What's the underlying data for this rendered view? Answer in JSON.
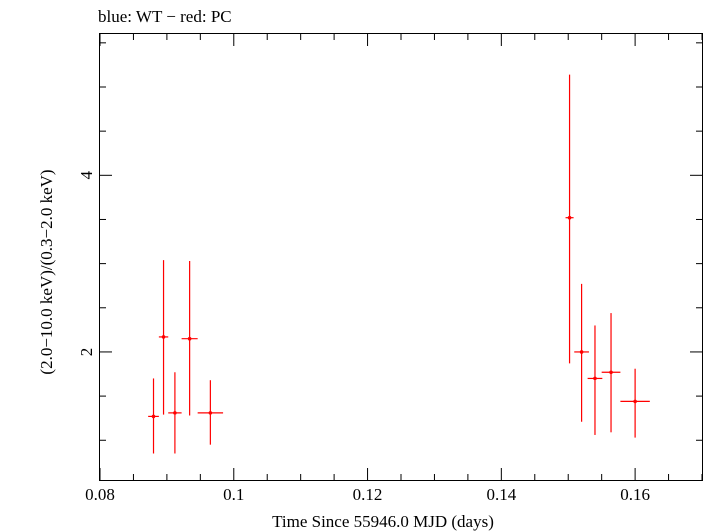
{
  "chart_data": {
    "type": "scatter",
    "title": "blue: WT − red: PC",
    "xlabel": "Time Since 55946.0 MJD (days)",
    "ylabel": "(2.0−10.0 keV)/(0.3−2.0 keV)",
    "xlim": [
      0.08,
      0.17
    ],
    "ylim": [
      0.55,
      5.6
    ],
    "x_ticks": [
      {
        "value": 0.08,
        "label": "0.08"
      },
      {
        "value": 0.1,
        "label": "0.1"
      },
      {
        "value": 0.12,
        "label": "0.12"
      },
      {
        "value": 0.14,
        "label": "0.14"
      },
      {
        "value": 0.16,
        "label": "0.16"
      }
    ],
    "y_ticks": [
      {
        "value": 2,
        "label": "2"
      },
      {
        "value": 4,
        "label": "4"
      }
    ],
    "grid": false,
    "series": [
      {
        "name": "PC",
        "color": "#ff0000",
        "points": [
          {
            "x": 0.088,
            "xerr": 0.0008,
            "y": 1.27,
            "ylo": 0.85,
            "yhi": 1.7
          },
          {
            "x": 0.0895,
            "xerr": 0.0007,
            "y": 2.17,
            "ylo": 1.29,
            "yhi": 3.04
          },
          {
            "x": 0.0912,
            "xerr": 0.001,
            "y": 1.31,
            "ylo": 0.85,
            "yhi": 1.77
          },
          {
            "x": 0.0934,
            "xerr": 0.0012,
            "y": 2.15,
            "ylo": 1.28,
            "yhi": 3.03
          },
          {
            "x": 0.0965,
            "xerr": 0.0019,
            "y": 1.31,
            "ylo": 0.95,
            "yhi": 1.68
          },
          {
            "x": 0.1502,
            "xerr": 0.0006,
            "y": 3.52,
            "ylo": 1.87,
            "yhi": 5.14
          },
          {
            "x": 0.152,
            "xerr": 0.0011,
            "y": 2.0,
            "ylo": 1.21,
            "yhi": 2.77
          },
          {
            "x": 0.154,
            "xerr": 0.0011,
            "y": 1.7,
            "ylo": 1.06,
            "yhi": 2.3
          },
          {
            "x": 0.1564,
            "xerr": 0.0014,
            "y": 1.77,
            "ylo": 1.09,
            "yhi": 2.44
          },
          {
            "x": 0.16,
            "xerr": 0.0022,
            "y": 1.44,
            "ylo": 1.03,
            "yhi": 1.81
          }
        ]
      }
    ]
  }
}
